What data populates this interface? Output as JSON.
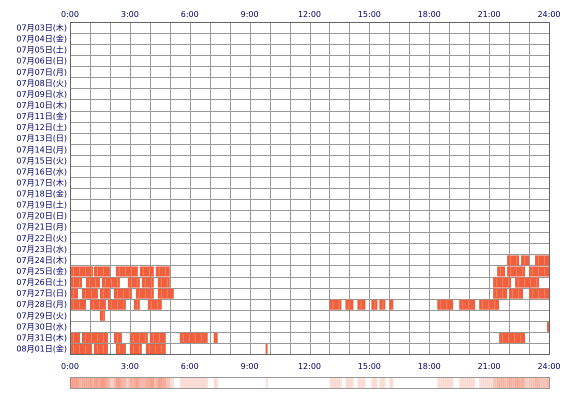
{
  "chart_data": {
    "type": "heatmap",
    "title": "",
    "xlabel": "",
    "ylabel": "",
    "x_unit": "hours",
    "xlim": [
      0,
      24
    ],
    "x_ticks": [
      "0:00",
      "3:00",
      "6:00",
      "9:00",
      "12:00",
      "15:00",
      "18:00",
      "21:00",
      "24:00"
    ],
    "grid": true,
    "colors": {
      "primary": "#f06040",
      "secondary": "#f59060",
      "grid": "#999999",
      "border": "#666666"
    },
    "rows": [
      {
        "label": "07月03日(木)",
        "intervals": []
      },
      {
        "label": "07月04日(金)",
        "intervals": []
      },
      {
        "label": "07月05日(土)",
        "intervals": []
      },
      {
        "label": "07月06日(日)",
        "intervals": []
      },
      {
        "label": "07月07日(月)",
        "intervals": []
      },
      {
        "label": "07月08日(火)",
        "intervals": []
      },
      {
        "label": "07月09日(水)",
        "intervals": []
      },
      {
        "label": "07月10日(木)",
        "intervals": []
      },
      {
        "label": "07月11日(金)",
        "intervals": []
      },
      {
        "label": "07月12日(土)",
        "intervals": []
      },
      {
        "label": "07月13日(日)",
        "intervals": []
      },
      {
        "label": "07月14日(月)",
        "intervals": []
      },
      {
        "label": "07月15日(火)",
        "intervals": []
      },
      {
        "label": "07月16日(水)",
        "intervals": []
      },
      {
        "label": "07月17日(木)",
        "intervals": []
      },
      {
        "label": "07月18日(金)",
        "intervals": []
      },
      {
        "label": "07月19日(土)",
        "intervals": []
      },
      {
        "label": "07月20日(日)",
        "intervals": []
      },
      {
        "label": "07月21日(月)",
        "intervals": []
      },
      {
        "label": "07月22日(火)",
        "intervals": []
      },
      {
        "label": "07月23日(水)",
        "intervals": []
      },
      {
        "label": "07月24日(木)",
        "intervals": [
          [
            21.9,
            22.5
          ],
          [
            22.6,
            23.0
          ],
          [
            23.3,
            24.0
          ]
        ]
      },
      {
        "label": "07月25日(金)",
        "intervals": [
          [
            0.0,
            1.15
          ],
          [
            1.2,
            2.0
          ],
          [
            2.3,
            3.4
          ],
          [
            3.5,
            4.2
          ],
          [
            4.3,
            5.0
          ],
          [
            21.4,
            21.8
          ],
          [
            21.9,
            22.8
          ],
          [
            23.0,
            24.0
          ]
        ]
      },
      {
        "label": "07月26日(土)",
        "intervals": [
          [
            0.0,
            0.6
          ],
          [
            0.8,
            1.5
          ],
          [
            1.6,
            2.5
          ],
          [
            2.9,
            3.5
          ],
          [
            3.6,
            4.2
          ],
          [
            4.4,
            5.0
          ],
          [
            21.2,
            22.1
          ],
          [
            22.3,
            23.5
          ]
        ]
      },
      {
        "label": "07月27日(日)",
        "intervals": [
          [
            0.0,
            0.4
          ],
          [
            0.6,
            1.4
          ],
          [
            1.5,
            2.0
          ],
          [
            2.2,
            3.1
          ],
          [
            3.3,
            4.2
          ],
          [
            4.4,
            5.2
          ],
          [
            21.2,
            21.9
          ],
          [
            22.0,
            22.7
          ],
          [
            23.0,
            24.0
          ]
        ]
      },
      {
        "label": "07月28日(月)",
        "intervals": [
          [
            0.0,
            0.8
          ],
          [
            1.0,
            1.8
          ],
          [
            1.9,
            2.8
          ],
          [
            3.2,
            3.5
          ],
          [
            3.9,
            4.6
          ],
          [
            13.0,
            13.6
          ],
          [
            13.8,
            14.2
          ],
          [
            14.4,
            14.8
          ],
          [
            15.1,
            15.4
          ],
          [
            15.5,
            15.8
          ],
          [
            16.0,
            16.2
          ],
          [
            18.4,
            19.2
          ],
          [
            19.5,
            20.3
          ],
          [
            20.5,
            21.5
          ]
        ]
      },
      {
        "label": "07月29日(火)",
        "intervals": [
          [
            1.5,
            1.75
          ]
        ]
      },
      {
        "label": "07月30日(水)",
        "intervals": [
          [
            23.9,
            24.0
          ]
        ]
      },
      {
        "label": "07月31日(木)",
        "intervals": [
          [
            0.0,
            0.5
          ],
          [
            0.6,
            1.9
          ],
          [
            2.2,
            2.6
          ],
          [
            3.0,
            3.9
          ],
          [
            4.0,
            4.8
          ],
          [
            5.5,
            6.9
          ],
          [
            7.2,
            7.4
          ],
          [
            21.5,
            22.8
          ]
        ]
      },
      {
        "label": "08月01日(金)",
        "intervals": [
          [
            0.0,
            1.1
          ],
          [
            1.2,
            1.9
          ],
          [
            2.3,
            2.8
          ],
          [
            3.0,
            3.6
          ],
          [
            3.8,
            4.8
          ],
          [
            9.8,
            9.9
          ]
        ]
      }
    ]
  }
}
